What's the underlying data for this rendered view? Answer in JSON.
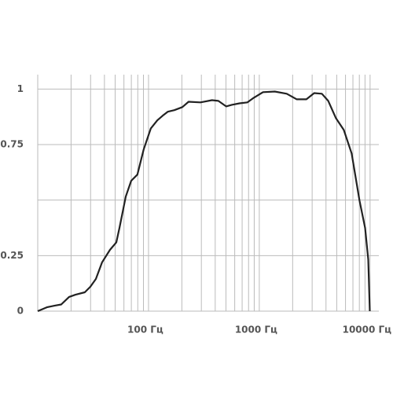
{
  "chart_data": {
    "type": "line",
    "log_x": true,
    "x": [
      10,
      12.2,
      14.3,
      16.3,
      19.2,
      21.9,
      26.6,
      29.9,
      33.5,
      38.1,
      44.9,
      51.2,
      54.7,
      62.3,
      69.8,
      79.4,
      90.5,
      105,
      120,
      134,
      149,
      171,
      202,
      230,
      294,
      374,
      427,
      502,
      565,
      664,
      781,
      875,
      1080,
      1380,
      1770,
      2180,
      2660,
      3130,
      3670,
      4190,
      4920,
      5790,
      6820,
      8030,
      9020,
      9620,
      9950
    ],
    "series": [
      {
        "color": "#222222",
        "values": [
          0,
          0.018,
          0.025,
          0.03,
          0.064,
          0.074,
          0.085,
          0.11,
          0.145,
          0.22,
          0.276,
          0.31,
          0.375,
          0.516,
          0.587,
          0.615,
          0.728,
          0.823,
          0.859,
          0.88,
          0.898,
          0.905,
          0.919,
          0.943,
          0.94,
          0.95,
          0.947,
          0.922,
          0.929,
          0.936,
          0.94,
          0.958,
          0.986,
          0.989,
          0.979,
          0.954,
          0.954,
          0.982,
          0.979,
          0.947,
          0.869,
          0.816,
          0.71,
          0.498,
          0.375,
          0.233,
          0
        ]
      }
    ],
    "xlim": [
      10,
      12000
    ],
    "ylim": [
      0,
      1.065
    ],
    "xticks": [
      {
        "value": 100,
        "label": "100 Гц"
      },
      {
        "value": 1000,
        "label": "1000 Гц"
      },
      {
        "value": 10000,
        "label": "10000 Гц"
      }
    ],
    "xgrid": [
      10,
      20,
      30,
      40,
      50,
      60,
      70,
      80,
      90,
      100,
      200,
      300,
      400,
      500,
      600,
      700,
      800,
      900,
      1000,
      2000,
      3000,
      4000,
      5000,
      6000,
      7000,
      8000,
      9000,
      10000
    ],
    "yticks": [
      0,
      0.25,
      0.75,
      1
    ],
    "ygrid": [
      0,
      0.25,
      0.5,
      0.75,
      1
    ],
    "grid": true
  }
}
